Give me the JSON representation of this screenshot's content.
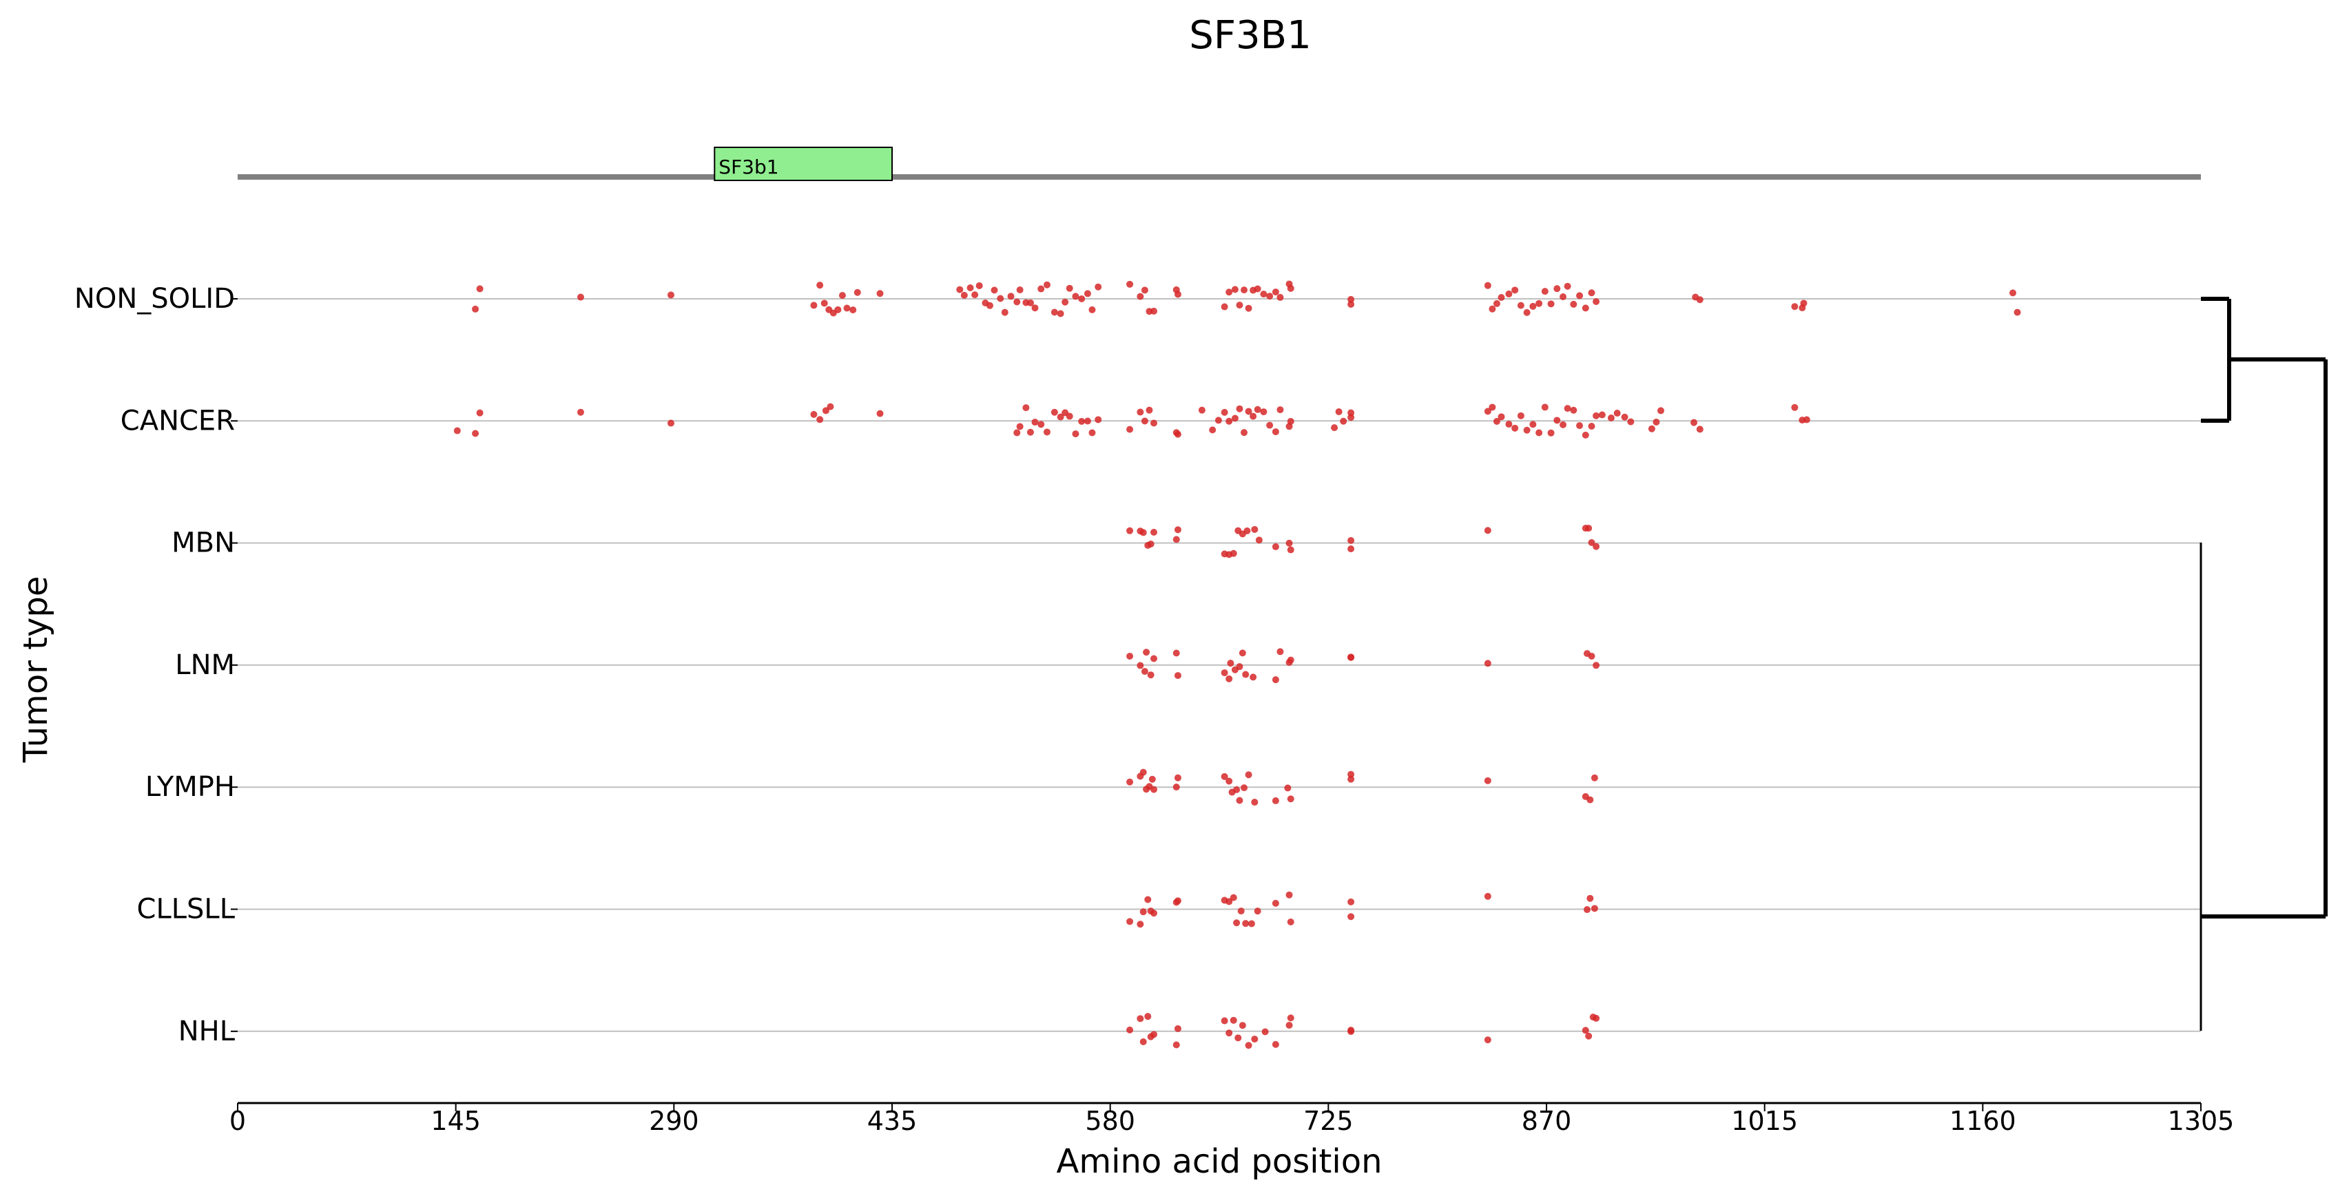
{
  "chart_data": {
    "type": "scatter",
    "title": "SF3B1",
    "xlabel": "Amino acid position",
    "ylabel": "Tumor type",
    "xlim": [
      0,
      1305
    ],
    "xticks": [
      0,
      145,
      290,
      435,
      580,
      725,
      870,
      1015,
      1160,
      1305
    ],
    "grid": false,
    "legend": "none",
    "colors": {
      "point": "#d62728",
      "protein": "#808080",
      "domain_fill": "#90ee90",
      "row_line": "#c0c0c0",
      "dendrogram": "#000000"
    },
    "domains": [
      {
        "name": "SF3b1",
        "start": 317,
        "end": 435
      }
    ],
    "categories": [
      "NON_SOLID",
      "CANCER",
      "MBN",
      "LNM",
      "LYMPH",
      "CLLSLL",
      "NHL"
    ],
    "series": [
      {
        "category": "NON_SOLID",
        "positions": [
          158,
          161,
          228,
          288,
          383,
          387,
          390,
          393,
          396,
          399,
          402,
          405,
          409,
          412,
          427,
          480,
          483,
          487,
          490,
          493,
          497,
          500,
          503,
          507,
          510,
          514,
          518,
          520,
          524,
          527,
          530,
          534,
          538,
          543,
          547,
          550,
          553,
          557,
          561,
          565,
          568,
          572,
          593,
          600,
          603,
          606,
          609,
          624,
          625,
          656,
          659,
          663,
          666,
          669,
          672,
          675,
          678,
          682,
          686,
          690,
          693,
          699,
          700,
          740,
          740,
          831,
          834,
          837,
          840,
          845,
          849,
          853,
          857,
          861,
          865,
          869,
          873,
          877,
          881,
          884,
          888,
          892,
          896,
          900,
          903,
          969,
          972,
          1035,
          1040,
          1041,
          1180,
          1183
        ]
      },
      {
        "category": "CANCER",
        "positions": [
          146,
          158,
          161,
          228,
          288,
          383,
          387,
          391,
          394,
          427,
          518,
          520,
          524,
          527,
          530,
          534,
          538,
          543,
          547,
          550,
          553,
          557,
          561,
          565,
          568,
          572,
          593,
          600,
          603,
          606,
          609,
          624,
          625,
          641,
          648,
          652,
          656,
          659,
          663,
          666,
          669,
          672,
          675,
          678,
          682,
          686,
          690,
          693,
          699,
          700,
          729,
          732,
          735,
          740,
          740,
          831,
          834,
          837,
          840,
          845,
          849,
          853,
          857,
          861,
          865,
          869,
          873,
          877,
          881,
          884,
          888,
          892,
          896,
          900,
          903,
          907,
          913,
          917,
          922,
          926,
          940,
          943,
          946,
          968,
          972,
          1035,
          1040,
          1043
        ]
      },
      {
        "category": "MBN",
        "positions": [
          593,
          600,
          602,
          605,
          607,
          609,
          624,
          625,
          656,
          659,
          662,
          665,
          668,
          671,
          676,
          679,
          690,
          699,
          700,
          740,
          740,
          831,
          896,
          898,
          900,
          903
        ]
      },
      {
        "category": "LNM",
        "positions": [
          593,
          600,
          603,
          604,
          607,
          609,
          624,
          625,
          656,
          659,
          660,
          663,
          666,
          668,
          670,
          675,
          690,
          693,
          699,
          700,
          740,
          740,
          831,
          897,
          900,
          903
        ]
      },
      {
        "category": "LYMPH",
        "positions": [
          593,
          600,
          602,
          604,
          606,
          608,
          609,
          624,
          625,
          656,
          659,
          661,
          664,
          666,
          669,
          672,
          676,
          690,
          698,
          700,
          740,
          740,
          831,
          896,
          899,
          902
        ]
      },
      {
        "category": "CLLSLL",
        "positions": [
          593,
          600,
          602,
          605,
          607,
          609,
          624,
          625,
          656,
          659,
          662,
          664,
          667,
          670,
          674,
          678,
          690,
          699,
          700,
          740,
          740,
          831,
          897,
          899,
          902
        ]
      },
      {
        "category": "NHL",
        "positions": [
          593,
          600,
          602,
          605,
          607,
          609,
          624,
          625,
          656,
          659,
          662,
          665,
          668,
          672,
          676,
          683,
          690,
          699,
          700,
          740,
          740,
          831,
          896,
          898,
          901,
          903
        ]
      }
    ],
    "dendrogram": [
      {
        "left": "NON_SOLID",
        "right": "CANCER"
      },
      {
        "left": "NON_SOLID+CANCER",
        "right": "MBN..NHL"
      }
    ]
  }
}
